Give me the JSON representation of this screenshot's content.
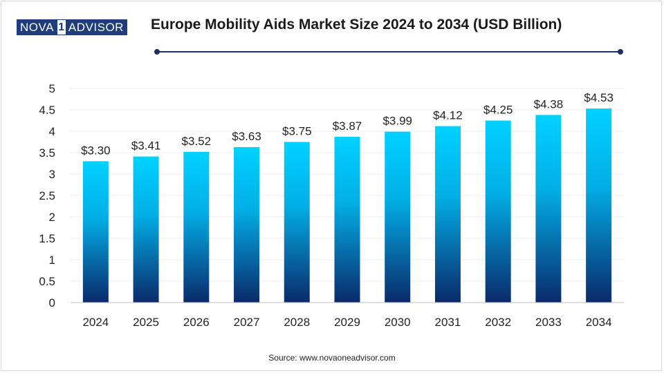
{
  "logo": {
    "part1": "NOVA",
    "part2": "1",
    "part3": "ADVISOR"
  },
  "source": "Source: www.novaoneadvisor.com",
  "colors": {
    "bar_top": "#00d2ff",
    "bar_bottom": "#0a2a6b",
    "divider": "#1f2f5f",
    "logo_bg": "#1f3d7a"
  },
  "chart_data": {
    "type": "bar",
    "title": "Europe Mobility Aids Market Size 2024 to 2034 (USD Billion)",
    "xlabel": "",
    "ylabel": "",
    "categories": [
      "2024",
      "2025",
      "2026",
      "2027",
      "2028",
      "2029",
      "2030",
      "2031",
      "2032",
      "2033",
      "2034"
    ],
    "values": [
      3.3,
      3.41,
      3.52,
      3.63,
      3.75,
      3.87,
      3.99,
      4.12,
      4.25,
      4.38,
      4.53
    ],
    "value_labels": [
      "$3.30",
      "$3.41",
      "$3.52",
      "$3.63",
      "$3.75",
      "$3.87",
      "$3.99",
      "$4.12",
      "$4.25",
      "$4.38",
      "$4.53"
    ],
    "ylim": [
      0,
      5
    ],
    "yticks": [
      "0",
      "0.5",
      "1",
      "1.5",
      "2",
      "2.5",
      "3",
      "3.5",
      "4",
      "4.5",
      "5"
    ],
    "grid": true
  }
}
